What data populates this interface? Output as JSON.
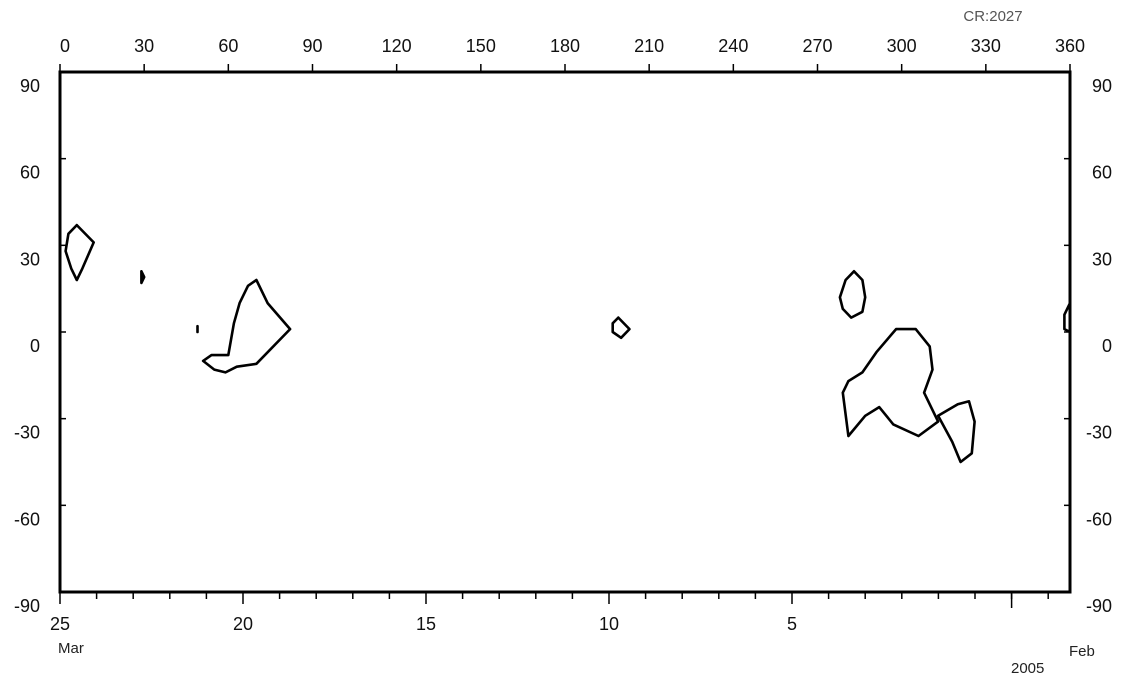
{
  "chart_data": {
    "type": "scatter",
    "title": "",
    "carrington_rotation_label": "CR:2027",
    "top_axis": {
      "ticks": [
        "0",
        "30",
        "60",
        "90",
        "120",
        "150",
        "180",
        "210",
        "240",
        "270",
        "300",
        "330",
        "360"
      ],
      "range": [
        0,
        360
      ]
    },
    "left_axis": {
      "ticks": [
        "90",
        "60",
        "30",
        "0",
        "-30",
        "-60",
        "-90"
      ],
      "range": [
        -90,
        90
      ]
    },
    "right_axis": {
      "ticks": [
        "90",
        "60",
        "30",
        "0",
        "-30",
        "-60",
        "-90"
      ],
      "range": [
        -90,
        90
      ]
    },
    "bottom_axis": {
      "major_ticks": [
        {
          "label": "25",
          "day": 25
        },
        {
          "label": "20",
          "day": 20
        },
        {
          "label": "15",
          "day": 15
        },
        {
          "label": "10",
          "day": 10
        },
        {
          "label": "5",
          "day": 5
        }
      ],
      "start_month": "Mar",
      "end_month": "Feb",
      "year": "2005"
    },
    "grid": false,
    "series": [
      {
        "points": [
          [
            6,
            37
          ],
          [
            12,
            31
          ],
          [
            8,
            22
          ],
          [
            6,
            18
          ],
          [
            4,
            22
          ],
          [
            2,
            28
          ],
          [
            3,
            34
          ],
          [
            6,
            37
          ]
        ]
      },
      {
        "points": [
          [
            29,
            21
          ],
          [
            30,
            19
          ],
          [
            29,
            17
          ],
          [
            29,
            21
          ]
        ]
      },
      {
        "points": [
          [
            49,
            2
          ],
          [
            49,
            0
          ],
          [
            49,
            2
          ]
        ]
      },
      {
        "points": [
          [
            70,
            18
          ],
          [
            67,
            16
          ],
          [
            64,
            10
          ],
          [
            62,
            3
          ],
          [
            60,
            -8
          ],
          [
            54,
            -8
          ],
          [
            51,
            -10
          ],
          [
            55,
            -13
          ],
          [
            59,
            -14
          ],
          [
            63,
            -12
          ],
          [
            70,
            -11
          ],
          [
            82,
            1
          ],
          [
            74,
            10
          ],
          [
            70,
            18
          ]
        ]
      },
      {
        "points": [
          [
            199,
            5
          ],
          [
            203,
            1
          ],
          [
            200,
            -2
          ],
          [
            197,
            0
          ],
          [
            197,
            3
          ],
          [
            199,
            5
          ]
        ]
      },
      {
        "points": [
          [
            283,
            21
          ],
          [
            286,
            18
          ],
          [
            287,
            12
          ],
          [
            286,
            7
          ],
          [
            282,
            5
          ],
          [
            279,
            8
          ],
          [
            278,
            12
          ],
          [
            280,
            18
          ],
          [
            283,
            21
          ]
        ]
      },
      {
        "points": [
          [
            286,
            -14
          ],
          [
            291,
            -7
          ],
          [
            298,
            1
          ],
          [
            305,
            1
          ],
          [
            310,
            -5
          ],
          [
            311,
            -13
          ],
          [
            308,
            -21
          ],
          [
            313,
            -31
          ],
          [
            306,
            -36
          ],
          [
            297,
            -32
          ],
          [
            292,
            -26
          ],
          [
            287,
            -29
          ],
          [
            281,
            -36
          ],
          [
            279,
            -21
          ],
          [
            281,
            -17
          ],
          [
            286,
            -14
          ]
        ]
      },
      {
        "points": [
          [
            324,
            -24
          ],
          [
            326,
            -31
          ],
          [
            325,
            -42
          ],
          [
            321,
            -45
          ],
          [
            318,
            -38
          ],
          [
            313,
            -29
          ],
          [
            320,
            -25
          ],
          [
            324,
            -24
          ]
        ]
      },
      {
        "points": [
          [
            360,
            10
          ],
          [
            358,
            6
          ],
          [
            358,
            1
          ],
          [
            360,
            0
          ]
        ]
      }
    ]
  }
}
